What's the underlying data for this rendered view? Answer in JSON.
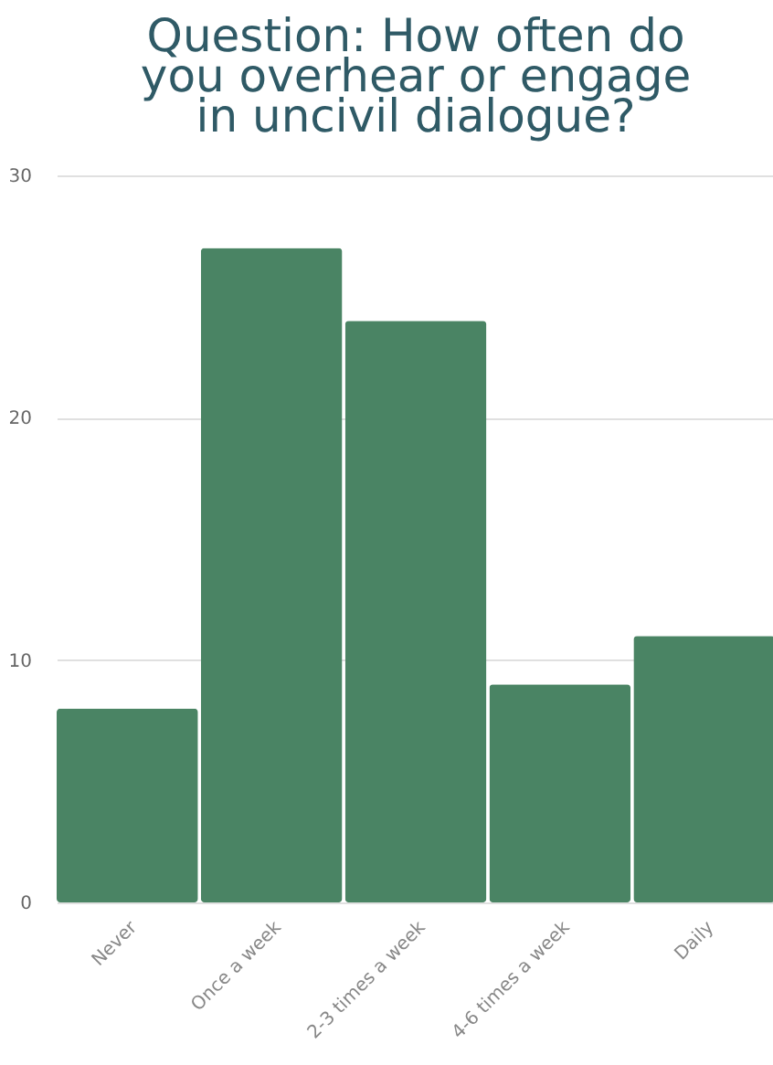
{
  "chart_data": {
    "type": "bar",
    "title": "Question: How often do\nyou overhear or engage\nin uncivil dialogue?",
    "categories": [
      "Never",
      "Once a week",
      "2-3 times a week",
      "4-6 times a week",
      "Daily"
    ],
    "values": [
      8,
      27,
      24,
      9,
      11
    ],
    "color": "#4a8464",
    "ylim": [
      0,
      30
    ],
    "yticks": [
      0,
      10,
      20,
      30
    ],
    "grid": "y"
  }
}
